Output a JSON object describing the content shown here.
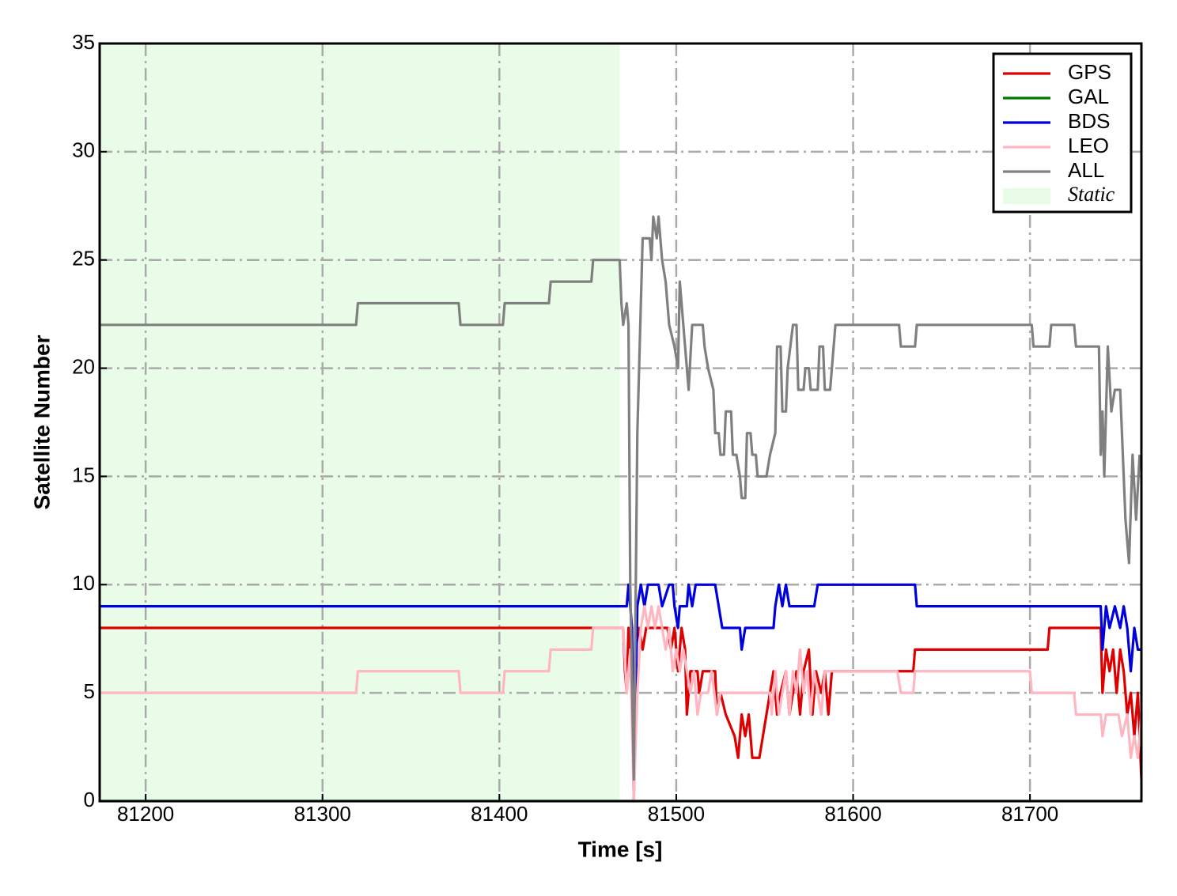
{
  "chart_data": {
    "type": "line",
    "xlabel": "Time [s]",
    "ylabel": "Satellite Number",
    "xlim": [
      81174,
      81763
    ],
    "ylim": [
      0,
      35
    ],
    "xticks": [
      81200,
      81300,
      81400,
      81500,
      81600,
      81700
    ],
    "yticks": [
      0,
      5,
      10,
      15,
      20,
      25,
      30,
      35
    ],
    "grid": true,
    "legend": "upper right",
    "static_region": {
      "label": "Static",
      "x": [
        81174,
        81468
      ],
      "color": "#e8fce8"
    },
    "series": [
      {
        "name": "GPS",
        "color": "#dd0000",
        "x": [
          81174,
          81470,
          81471,
          81472,
          81473,
          81474,
          81475,
          81476,
          81477,
          81479,
          81481,
          81483,
          81495,
          81497,
          81499,
          81501,
          81503,
          81505,
          81506,
          81508,
          81512,
          81513,
          81515,
          81522,
          81523,
          81525,
          81528,
          81533,
          81535,
          81537,
          81539,
          81541,
          81543,
          81547,
          81549,
          81551,
          81553,
          81555,
          81557,
          81559,
          81562,
          81564,
          81566,
          81568,
          81570,
          81572,
          81575,
          81577,
          81579,
          81582,
          81584,
          81586,
          81588,
          81591,
          81634,
          81635,
          81710,
          81711,
          81740,
          81741,
          81743,
          81745,
          81747,
          81749,
          81751,
          81753,
          81755,
          81757,
          81759,
          81761,
          81763
        ],
        "values": [
          8,
          8,
          6,
          5,
          8,
          6,
          5,
          0,
          7,
          8,
          7,
          8,
          8,
          7,
          8,
          6,
          8,
          7,
          4,
          6,
          6,
          5,
          6,
          6,
          4,
          5,
          4,
          3,
          2,
          4,
          3,
          4,
          2,
          2,
          3,
          4,
          5,
          6,
          4,
          5,
          6,
          4,
          5,
          6,
          4,
          6,
          7,
          4,
          6,
          5,
          6,
          4,
          6,
          6,
          6,
          7,
          7,
          8,
          8,
          5,
          7,
          6,
          7,
          5,
          7,
          6,
          4,
          5,
          3,
          5,
          1
        ]
      },
      {
        "name": "GAL",
        "color": "#007700",
        "x": [
          81174,
          81763
        ],
        "values": [
          0,
          0
        ]
      },
      {
        "name": "BDS",
        "color": "#0000dd",
        "x": [
          81174,
          81472,
          81473,
          81474,
          81475,
          81476,
          81478,
          81480,
          81482,
          81484,
          81490,
          81492,
          81496,
          81498,
          81499,
          81501,
          81502,
          81506,
          81507,
          81509,
          81511,
          81522,
          81524,
          81526,
          81536,
          81537,
          81539,
          81555,
          81556,
          81558,
          81560,
          81562,
          81564,
          81578,
          81580,
          81635,
          81636,
          81740,
          81741,
          81743,
          81745,
          81748,
          81751,
          81753,
          81755,
          81757,
          81759,
          81761,
          81763
        ],
        "values": [
          9,
          9,
          10,
          9,
          8,
          0,
          9,
          10,
          9,
          10,
          10,
          9,
          10,
          10,
          9,
          8,
          9,
          9,
          10,
          9,
          10,
          10,
          9,
          8,
          8,
          7,
          8,
          8,
          9,
          10,
          9,
          10,
          9,
          9,
          10,
          10,
          9,
          9,
          7,
          9,
          8,
          9,
          8,
          9,
          8,
          6,
          8,
          7,
          7
        ]
      },
      {
        "name": "LEO",
        "color": "#ffb6c1",
        "x": [
          81174,
          81319,
          81320,
          81377,
          81378,
          81402,
          81403,
          81428,
          81429,
          81452,
          81453,
          81470,
          81472,
          81474,
          81476,
          81478,
          81480,
          81482,
          81484,
          81486,
          81488,
          81490,
          81492,
          81494,
          81496,
          81498,
          81500,
          81502,
          81504,
          81506,
          81508,
          81510,
          81512,
          81514,
          81518,
          81520,
          81523,
          81525,
          81553,
          81554,
          81556,
          81558,
          81560,
          81562,
          81564,
          81566,
          81568,
          81570,
          81572,
          81574,
          81576,
          81578,
          81580,
          81582,
          81584,
          81625,
          81627,
          81634,
          81635,
          81700,
          81701,
          81725,
          81726,
          81740,
          81741,
          81743,
          81750,
          81752,
          81755,
          81757,
          81759,
          81761,
          81763
        ],
        "values": [
          5,
          5,
          6,
          6,
          5,
          5,
          6,
          6,
          7,
          7,
          8,
          8,
          5,
          7,
          0,
          5,
          8,
          9,
          8,
          9,
          8,
          9,
          8,
          7,
          8,
          6,
          7,
          6,
          7,
          6,
          5,
          6,
          4,
          5,
          5,
          6,
          4,
          5,
          5,
          4,
          6,
          4,
          5,
          6,
          4,
          6,
          5,
          7,
          5,
          6,
          4,
          6,
          5,
          4,
          6,
          6,
          5,
          5,
          6,
          6,
          5,
          5,
          4,
          4,
          3,
          4,
          4,
          3,
          4,
          2,
          3,
          2,
          4
        ]
      },
      {
        "name": "ALL",
        "color": "#808080",
        "x": [
          81174,
          81319,
          81320,
          81377,
          81378,
          81402,
          81403,
          81428,
          81429,
          81452,
          81453,
          81468,
          81469,
          81470,
          81472,
          81473,
          81474,
          81476,
          81478,
          81480,
          81481,
          81485,
          81486,
          81487,
          81489,
          81490,
          81492,
          81494,
          81496,
          81499,
          81501,
          81502,
          81503,
          81505,
          81507,
          81509,
          81515,
          81516,
          81518,
          81521,
          81522,
          81524,
          81525,
          81527,
          81528,
          81531,
          81532,
          81534,
          81536,
          81537,
          81539,
          81540,
          81542,
          81543,
          81545,
          81546,
          81551,
          81553,
          81556,
          81557,
          81559,
          81560,
          81562,
          81563,
          81566,
          81568,
          81569,
          81572,
          81573,
          81575,
          81576,
          81580,
          81581,
          81583,
          81584,
          81587,
          81588,
          81590,
          81626,
          81627,
          81635,
          81636,
          81701,
          81702,
          81711,
          81712,
          81725,
          81726,
          81739,
          81740,
          81741,
          81742,
          81744,
          81746,
          81748,
          81751,
          81753,
          81754,
          81756,
          81758,
          81760,
          81762
        ],
        "values": [
          22,
          22,
          23,
          23,
          22,
          22,
          23,
          23,
          24,
          24,
          25,
          25,
          23,
          22,
          23,
          22,
          10,
          1,
          17,
          23,
          26,
          26,
          25,
          27,
          26,
          27,
          25,
          24,
          22,
          21,
          20,
          24,
          23,
          21,
          19,
          22,
          22,
          21,
          20,
          19,
          17,
          17,
          16,
          16,
          18,
          18,
          16,
          16,
          15,
          14,
          14,
          17,
          17,
          16,
          16,
          15,
          15,
          16,
          17,
          21,
          21,
          18,
          18,
          20,
          22,
          22,
          19,
          19,
          20,
          20,
          19,
          19,
          21,
          21,
          19,
          19,
          20,
          22,
          22,
          21,
          21,
          22,
          22,
          21,
          21,
          22,
          22,
          21,
          21,
          16,
          18,
          15,
          21,
          18,
          19,
          19,
          15,
          13,
          11,
          16,
          13,
          16
        ]
      }
    ]
  }
}
